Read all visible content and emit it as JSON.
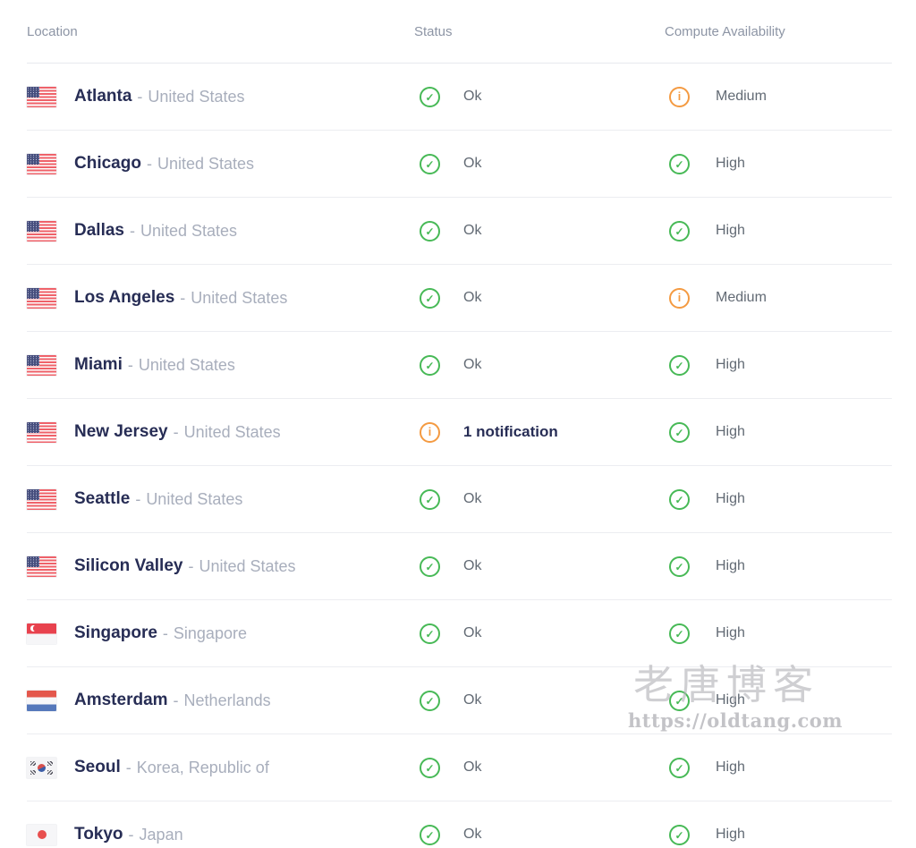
{
  "table": {
    "columns": {
      "location": "Location",
      "status": "Status",
      "availability": "Compute Availability"
    },
    "separator": "-",
    "rows": [
      {
        "city": "Atlanta",
        "country": "United States",
        "flag": "us",
        "status_icon": "check",
        "status_label": "Ok",
        "availability_icon": "info",
        "availability_label": "Medium"
      },
      {
        "city": "Chicago",
        "country": "United States",
        "flag": "us",
        "status_icon": "check",
        "status_label": "Ok",
        "availability_icon": "check",
        "availability_label": "High"
      },
      {
        "city": "Dallas",
        "country": "United States",
        "flag": "us",
        "status_icon": "check",
        "status_label": "Ok",
        "availability_icon": "check",
        "availability_label": "High"
      },
      {
        "city": "Los Angeles",
        "country": "United States",
        "flag": "us",
        "status_icon": "check",
        "status_label": "Ok",
        "availability_icon": "info",
        "availability_label": "Medium"
      },
      {
        "city": "Miami",
        "country": "United States",
        "flag": "us",
        "status_icon": "check",
        "status_label": "Ok",
        "availability_icon": "check",
        "availability_label": "High"
      },
      {
        "city": "New Jersey",
        "country": "United States",
        "flag": "us",
        "status_icon": "info",
        "status_label": "1 notification",
        "availability_icon": "check",
        "availability_label": "High"
      },
      {
        "city": "Seattle",
        "country": "United States",
        "flag": "us",
        "status_icon": "check",
        "status_label": "Ok",
        "availability_icon": "check",
        "availability_label": "High"
      },
      {
        "city": "Silicon Valley",
        "country": "United States",
        "flag": "us",
        "status_icon": "check",
        "status_label": "Ok",
        "availability_icon": "check",
        "availability_label": "High"
      },
      {
        "city": "Singapore",
        "country": "Singapore",
        "flag": "sg",
        "status_icon": "check",
        "status_label": "Ok",
        "availability_icon": "check",
        "availability_label": "High"
      },
      {
        "city": "Amsterdam",
        "country": "Netherlands",
        "flag": "nl",
        "status_icon": "check",
        "status_label": "Ok",
        "availability_icon": "check",
        "availability_label": "High"
      },
      {
        "city": "Seoul",
        "country": "Korea, Republic of",
        "flag": "kr",
        "status_icon": "check",
        "status_label": "Ok",
        "availability_icon": "check",
        "availability_label": "High"
      },
      {
        "city": "Tokyo",
        "country": "Japan",
        "flag": "jp",
        "status_icon": "check",
        "status_label": "Ok",
        "availability_icon": "check",
        "availability_label": "High"
      }
    ]
  },
  "watermark": {
    "title": "老唐博客",
    "url": "https://oldtang.com"
  },
  "colors": {
    "ok_green": "#47b956",
    "warn_orange": "#f49a41",
    "city_navy": "#272d55",
    "muted_gray": "#a8aebc",
    "header_gray": "#8d95a5",
    "divider": "#ecedf1"
  }
}
